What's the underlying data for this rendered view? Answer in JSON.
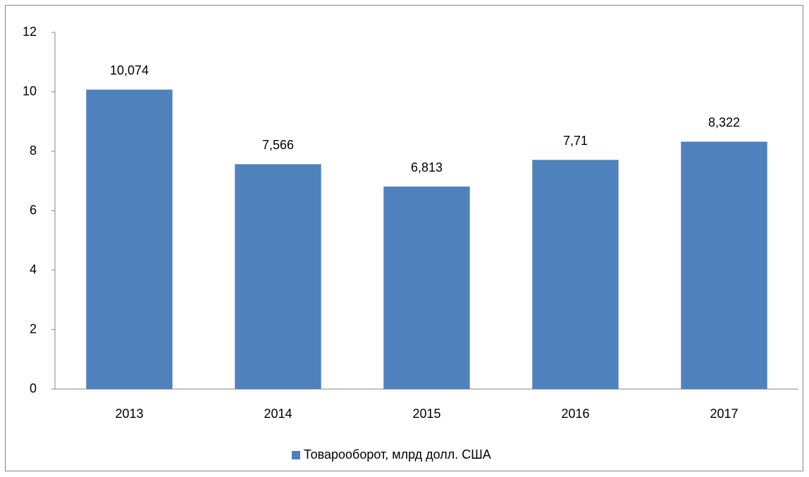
{
  "chart_data": {
    "type": "bar",
    "categories": [
      "2013",
      "2014",
      "2015",
      "2016",
      "2017"
    ],
    "series": [
      {
        "name": "Товарооборот, млрд долл. США",
        "color": "#4f81bd",
        "values": [
          10.074,
          7.566,
          6.813,
          7.71,
          8.322
        ],
        "value_labels": [
          "10,074",
          "7,566",
          "6,813",
          "7,71",
          "8,322"
        ]
      }
    ],
    "ylim": [
      0,
      12
    ],
    "yticks": [
      0,
      2,
      4,
      6,
      8,
      10,
      12
    ],
    "grid": false,
    "legend": "bottom"
  }
}
